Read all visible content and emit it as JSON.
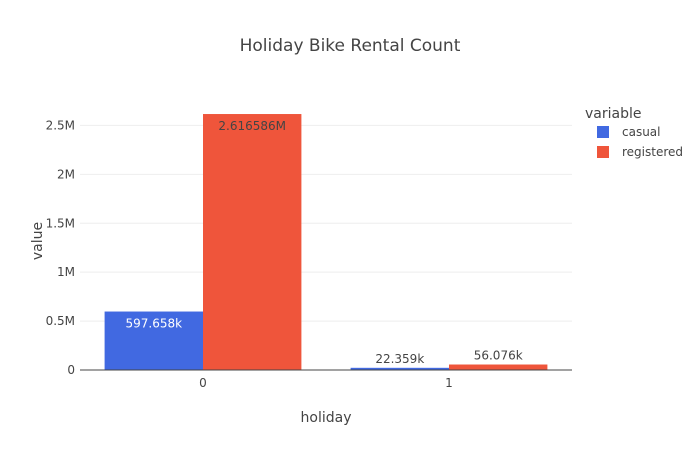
{
  "chart_data": {
    "type": "bar",
    "title": "Holiday Bike Rental Count",
    "xlabel": "holiday",
    "ylabel": "value",
    "categories": [
      "0",
      "1"
    ],
    "series": [
      {
        "name": "casual",
        "color": "#4169E1",
        "values": [
          597658,
          22359
        ],
        "labels": [
          "597.658k",
          "22.359k"
        ]
      },
      {
        "name": "registered",
        "color": "#EF553B",
        "values": [
          2616586,
          56076
        ],
        "labels": [
          "2.616586M",
          "56.076k"
        ]
      }
    ],
    "ylim": [
      0,
      2760000
    ],
    "yticks": [
      0,
      500000,
      1000000,
      1500000,
      2000000,
      2500000
    ],
    "ytick_labels": [
      "0",
      "0.5M",
      "1M",
      "1.5M",
      "2M",
      "2.5M"
    ],
    "legend": {
      "title": "variable",
      "placement": "top-right"
    },
    "grid": true
  }
}
